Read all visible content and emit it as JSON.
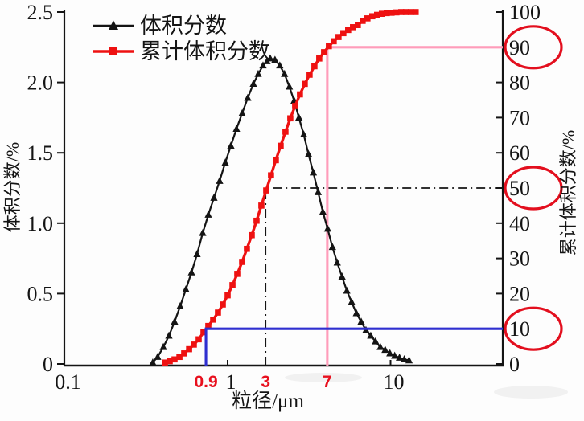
{
  "legend": {
    "items": [
      {
        "label": "体积分数"
      },
      {
        "label": "累计体积分数"
      }
    ]
  },
  "axes": {
    "x": {
      "title": "粒径/μm",
      "scale": "log",
      "ticks": [
        {
          "v": 0.1,
          "label": "0.1",
          "tick": false
        },
        {
          "v": 1,
          "label": "1",
          "tick": true
        },
        {
          "v": 10,
          "label": "10",
          "tick": true
        }
      ]
    },
    "left": {
      "title": "体积分数/%",
      "range": [
        0,
        2.5
      ],
      "ticks": [
        {
          "v": 0,
          "label": "0"
        },
        {
          "v": 0.5,
          "label": "0.5"
        },
        {
          "v": 1,
          "label": "1.0"
        },
        {
          "v": 1.5,
          "label": "1.5"
        },
        {
          "v": 2,
          "label": "2.0"
        },
        {
          "v": 2.5,
          "label": "2.5"
        }
      ]
    },
    "right": {
      "title": "累计体积分数/%",
      "range": [
        0,
        100
      ],
      "ticks": [
        {
          "v": 0,
          "label": "0"
        },
        {
          "v": 10,
          "label": "10"
        },
        {
          "v": 20,
          "label": "20"
        },
        {
          "v": 30,
          "label": "30"
        },
        {
          "v": 40,
          "label": "40"
        },
        {
          "v": 50,
          "label": "50"
        },
        {
          "v": 60,
          "label": "60"
        },
        {
          "v": 70,
          "label": "70"
        },
        {
          "v": 80,
          "label": "80"
        },
        {
          "v": 90,
          "label": "90"
        },
        {
          "v": 100,
          "label": "100"
        }
      ]
    }
  },
  "annotations": {
    "label_color": "#e8101e",
    "circle_color": "#e30f1e",
    "guides": [
      {
        "name": "d10",
        "label": "0.9",
        "x": 0.736,
        "level": 10,
        "color": "#2f2fd0",
        "style": "solid"
      },
      {
        "name": "d50",
        "label": "3",
        "x": 1.71,
        "level": 50,
        "color": "#141414",
        "style": "dashdot"
      },
      {
        "name": "d90",
        "label": "7",
        "x": 4.09,
        "level": 90,
        "color": "#ff9cba",
        "style": "solid"
      }
    ],
    "circled_values": [
      90,
      50,
      10
    ]
  },
  "chart_data": {
    "type": "line",
    "title": "",
    "xlabel": "粒径/μm",
    "ylabel_left": "体积分数/%",
    "ylabel_right": "累计体积分数/%",
    "x_scale": "log",
    "x_range": [
      0.1,
      48
    ],
    "y_left_range": [
      0,
      2.5
    ],
    "y_right_range": [
      0,
      100
    ],
    "series": [
      {
        "name": "体积分数",
        "axis": "left",
        "color": "#141414",
        "marker": "triangle",
        "points": [
          [
            0.347,
            0.01
          ],
          [
            0.372,
            0.05
          ],
          [
            0.403,
            0.12
          ],
          [
            0.436,
            0.2
          ],
          [
            0.472,
            0.3
          ],
          [
            0.511,
            0.41
          ],
          [
            0.554,
            0.53
          ],
          [
            0.6,
            0.65
          ],
          [
            0.649,
            0.78
          ],
          [
            0.703,
            0.93
          ],
          [
            0.761,
            1.06
          ],
          [
            0.824,
            1.18
          ],
          [
            0.893,
            1.3
          ],
          [
            0.967,
            1.43
          ],
          [
            1.047,
            1.55
          ],
          [
            1.133,
            1.67
          ],
          [
            1.227,
            1.78
          ],
          [
            1.329,
            1.89
          ],
          [
            1.439,
            1.99
          ],
          [
            1.54,
            2.06
          ],
          [
            1.649,
            2.12
          ],
          [
            1.745,
            2.15
          ],
          [
            1.826,
            2.17
          ],
          [
            1.953,
            2.16
          ],
          [
            2.09,
            2.12
          ],
          [
            2.236,
            2.06
          ],
          [
            2.393,
            1.97
          ],
          [
            2.561,
            1.87
          ],
          [
            2.74,
            1.75
          ],
          [
            2.932,
            1.63
          ],
          [
            3.137,
            1.49
          ],
          [
            3.357,
            1.36
          ],
          [
            3.592,
            1.22
          ],
          [
            3.843,
            1.08
          ],
          [
            4.112,
            0.96
          ],
          [
            4.4,
            0.83
          ],
          [
            4.708,
            0.72
          ],
          [
            5.038,
            0.62
          ],
          [
            5.391,
            0.52
          ],
          [
            5.768,
            0.44
          ],
          [
            6.172,
            0.36
          ],
          [
            6.604,
            0.3
          ],
          [
            7.066,
            0.24
          ],
          [
            7.561,
            0.2
          ],
          [
            8.091,
            0.16
          ],
          [
            8.657,
            0.12
          ],
          [
            9.263,
            0.1
          ],
          [
            9.912,
            0.075
          ],
          [
            10.606,
            0.058
          ],
          [
            11.348,
            0.044
          ],
          [
            12.143,
            0.033
          ],
          [
            12.993,
            0.025
          ]
        ]
      },
      {
        "name": "累计体积分数",
        "axis": "right",
        "color": "#ee1111",
        "marker": "square",
        "points": [
          [
            0.412,
            0.4
          ],
          [
            0.441,
            0.8
          ],
          [
            0.472,
            1.3
          ],
          [
            0.506,
            2.0
          ],
          [
            0.541,
            3.0
          ],
          [
            0.58,
            4.2
          ],
          [
            0.62,
            5.5
          ],
          [
            0.664,
            7.0
          ],
          [
            0.711,
            9.0
          ],
          [
            0.761,
            10.8
          ],
          [
            0.815,
            12.6
          ],
          [
            0.872,
            14.6
          ],
          [
            0.934,
            16.9
          ],
          [
            1.0,
            19.5
          ],
          [
            1.071,
            22.4
          ],
          [
            1.146,
            25.6
          ],
          [
            1.227,
            29.0
          ],
          [
            1.313,
            32.7
          ],
          [
            1.406,
            36.6
          ],
          [
            1.505,
            40.7
          ],
          [
            1.611,
            45.0
          ],
          [
            1.725,
            49.3
          ],
          [
            1.846,
            53.6
          ],
          [
            1.977,
            57.9
          ],
          [
            2.116,
            62.0
          ],
          [
            2.265,
            66.0
          ],
          [
            2.425,
            69.8
          ],
          [
            2.596,
            73.3
          ],
          [
            2.779,
            76.6
          ],
          [
            2.975,
            79.6
          ],
          [
            3.185,
            82.2
          ],
          [
            3.41,
            84.6
          ],
          [
            3.65,
            86.8
          ],
          [
            3.908,
            88.6
          ],
          [
            4.183,
            90.3
          ],
          [
            4.478,
            91.7
          ],
          [
            4.794,
            92.9
          ],
          [
            5.132,
            94.0
          ],
          [
            5.494,
            94.9
          ],
          [
            5.882,
            95.7
          ],
          [
            6.297,
            96.3
          ],
          [
            6.741,
            97.5
          ],
          [
            7.216,
            98.2
          ],
          [
            7.725,
            98.8
          ],
          [
            8.27,
            99.2
          ],
          [
            8.853,
            99.5
          ],
          [
            9.478,
            99.7
          ],
          [
            10.146,
            99.8
          ],
          [
            10.862,
            99.9
          ],
          [
            11.628,
            100
          ],
          [
            12.448,
            100
          ],
          [
            13.326,
            100
          ],
          [
            14.266,
            100
          ]
        ]
      }
    ]
  }
}
